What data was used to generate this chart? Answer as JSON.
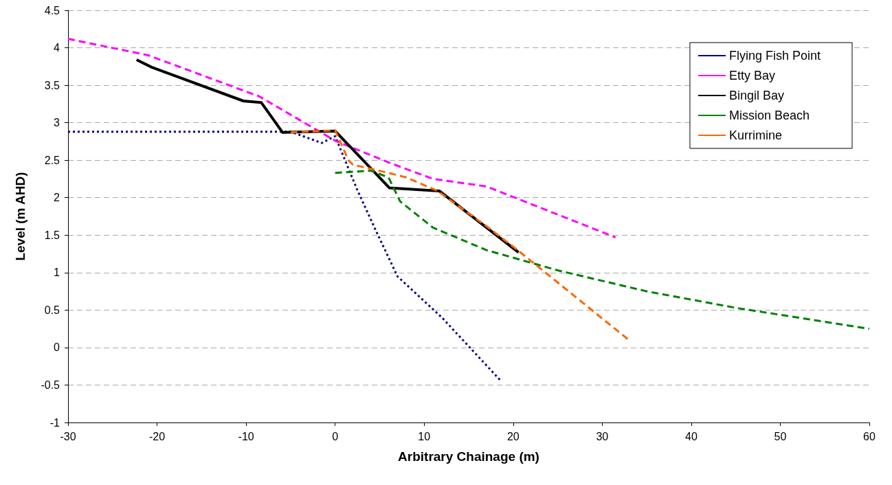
{
  "chart_data": {
    "type": "line",
    "xlabel": "Arbitrary Chainage (m)",
    "ylabel": "Level (m AHD)",
    "xlim": [
      -30,
      60
    ],
    "xticks": [
      -30,
      -20,
      -10,
      0,
      10,
      20,
      30,
      40,
      50,
      60
    ],
    "ylim": [
      -1,
      4.5
    ],
    "yticks": [
      -1,
      -0.5,
      0,
      0.5,
      1,
      1.5,
      2,
      2.5,
      3,
      3.5,
      4,
      4.5
    ],
    "grid": "y",
    "legend": "top right",
    "marker": "none",
    "series": [
      {
        "name": "Flying Fish Point",
        "color": "#000080",
        "line_style": "dotted",
        "x": [
          -30,
          -5,
          -1.5,
          0,
          2.5,
          4.5,
          7,
          12,
          18.5
        ],
        "values": [
          2.88,
          2.88,
          2.73,
          2.82,
          2.1,
          1.58,
          0.95,
          0.4,
          -0.43
        ]
      },
      {
        "name": "Etty Bay",
        "color": "#ff00ff",
        "line_style": "dashed",
        "x": [
          -30,
          -21,
          -8.5,
          0,
          6,
          11,
          17,
          31.5
        ],
        "values": [
          4.12,
          3.9,
          3.35,
          2.76,
          2.47,
          2.25,
          2.15,
          1.47
        ]
      },
      {
        "name": "Bingil Bay",
        "color": "#000000",
        "line_style": "solid",
        "x": [
          -22.3,
          -20.6,
          -10.3,
          -8.3,
          -5.9,
          0,
          6.1,
          11.7,
          20.6
        ],
        "values": [
          3.84,
          3.74,
          3.29,
          3.27,
          2.87,
          2.89,
          2.13,
          2.09,
          1.27
        ]
      },
      {
        "name": "Mission Beach",
        "color": "#008000",
        "line_style": "dashed",
        "x": [
          0,
          4,
          6,
          7.3,
          11,
          17,
          25,
          35,
          45,
          60
        ],
        "values": [
          2.33,
          2.36,
          2.27,
          1.95,
          1.6,
          1.3,
          1.03,
          0.75,
          0.53,
          0.25
        ]
      },
      {
        "name": "Kurrimine",
        "color": "#ff6600",
        "line_style": "dashed",
        "x": [
          -5,
          0,
          1.5,
          2,
          6,
          8,
          11.5,
          17,
          20.5,
          33
        ],
        "values": [
          2.87,
          2.9,
          2.5,
          2.44,
          2.33,
          2.27,
          2.09,
          1.62,
          1.3,
          0.1
        ]
      }
    ]
  }
}
